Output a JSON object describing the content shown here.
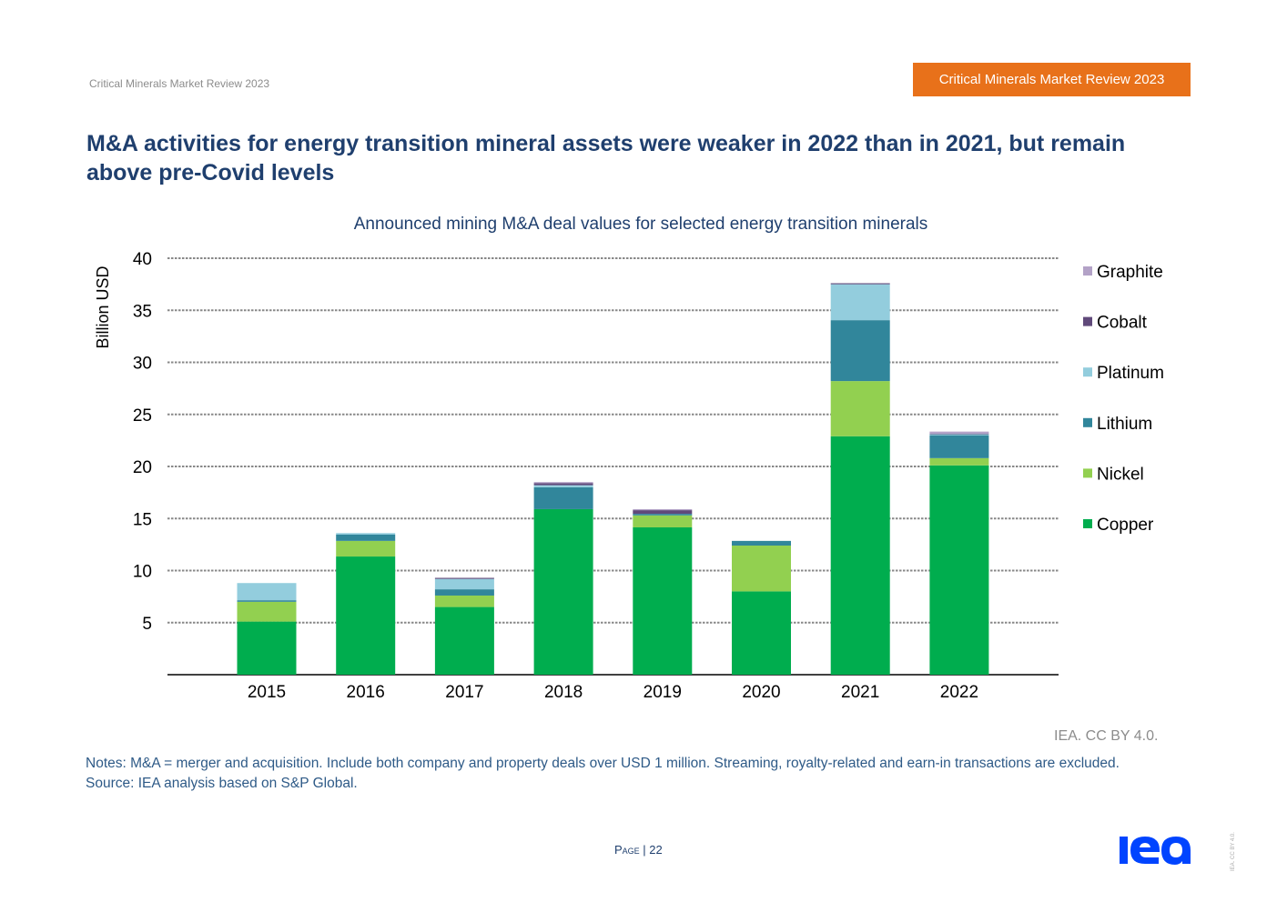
{
  "header": {
    "left": "Critical Minerals Market Review 2023",
    "right": "Critical Minerals Market Review 2023"
  },
  "title": "M&A activities for energy transition mineral assets were weaker in 2022 than in 2021, but remain above pre-Covid levels",
  "chart_data": {
    "type": "bar",
    "stacked": true,
    "title": "Announced mining M&A deal values for selected energy transition minerals",
    "xlabel": "",
    "ylabel": "Billion USD",
    "ylim": [
      0,
      40
    ],
    "yticks": [
      5,
      10,
      15,
      20,
      25,
      30,
      35,
      40
    ],
    "grid": true,
    "legend": "right",
    "categories": [
      "2015",
      "2016",
      "2017",
      "2018",
      "2019",
      "2020",
      "2021",
      "2022"
    ],
    "series": [
      {
        "name": "Copper",
        "color": "#00ad4e",
        "values": [
          5.1,
          11.35,
          6.5,
          15.9,
          14.15,
          8.0,
          22.9,
          20.1
        ]
      },
      {
        "name": "Nickel",
        "color": "#92d050",
        "values": [
          1.9,
          1.5,
          1.1,
          0,
          1.15,
          4.4,
          5.3,
          0.7
        ]
      },
      {
        "name": "Lithium",
        "color": "#31869b",
        "values": [
          0.15,
          0.6,
          0.6,
          2.1,
          0.15,
          0.45,
          5.85,
          2.2
        ]
      },
      {
        "name": "Platinum",
        "color": "#93cddd",
        "values": [
          1.65,
          0.15,
          1.0,
          0.2,
          0,
          0,
          3.45,
          0.1
        ]
      },
      {
        "name": "Cobalt",
        "color": "#60497a",
        "values": [
          0,
          0,
          0.1,
          0.2,
          0.35,
          0,
          0.1,
          0.05
        ]
      },
      {
        "name": "Graphite",
        "color": "#b3a2c7",
        "values": [
          0,
          0,
          0,
          0.1,
          0.1,
          0,
          0,
          0.2
        ]
      }
    ]
  },
  "credit": "IEA. CC BY 4.0.",
  "notes": "Notes: M&A = merger and acquisition. Include both company and property deals over USD 1 million. Streaming, royalty-related and earn-in transactions are excluded.",
  "source": "Source: IEA analysis based on S&P Global.",
  "page": "Page | 22",
  "logo": "iea",
  "side_credit": "IEA. CC BY 4.0."
}
